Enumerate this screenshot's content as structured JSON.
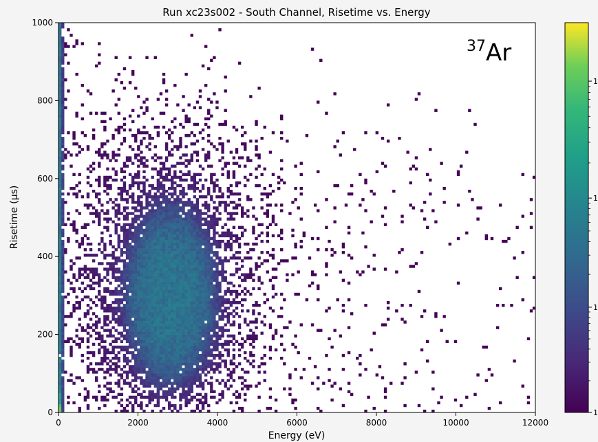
{
  "chart_data": {
    "type": "heatmap",
    "title": "Run xc23s002 - South Channel, Risetime vs. Energy",
    "xlabel": "Energy (eV)",
    "ylabel": "Risetime (μs)",
    "annotation": {
      "superscript": "37",
      "text": "Ar"
    },
    "xlim": [
      0,
      12000
    ],
    "ylim": [
      0,
      1000
    ],
    "x_ticks": [
      0,
      2000,
      4000,
      6000,
      8000,
      10000,
      12000
    ],
    "y_ticks": [
      0,
      200,
      400,
      600,
      800,
      1000
    ],
    "grid": false,
    "colormap": "viridis",
    "colorbar": {
      "scale": "log",
      "tick_labels": [
        "1",
        "1",
        "1",
        "1"
      ],
      "note": "labels cropped at right edge"
    },
    "bins": {
      "x_count": 170,
      "y_count": 140
    },
    "components": [
      {
        "name": "low-energy column",
        "x_range": [
          0,
          120
        ],
        "y_range": [
          0,
          1000
        ],
        "intensity": "high"
      },
      {
        "name": "37Ar K-shell cluster",
        "x_center": 2820,
        "y_center": 300,
        "x_extent": [
          1500,
          4300
        ],
        "y_extent": [
          0,
          600
        ],
        "intensity": "medium"
      },
      {
        "name": "diffuse background",
        "x_range": [
          400,
          12000
        ],
        "y_range": [
          0,
          650
        ],
        "intensity": "low"
      }
    ],
    "colors": {
      "low": "#440154",
      "mid": "#31688e",
      "high": "#35b779",
      "max": "#fde725"
    }
  }
}
